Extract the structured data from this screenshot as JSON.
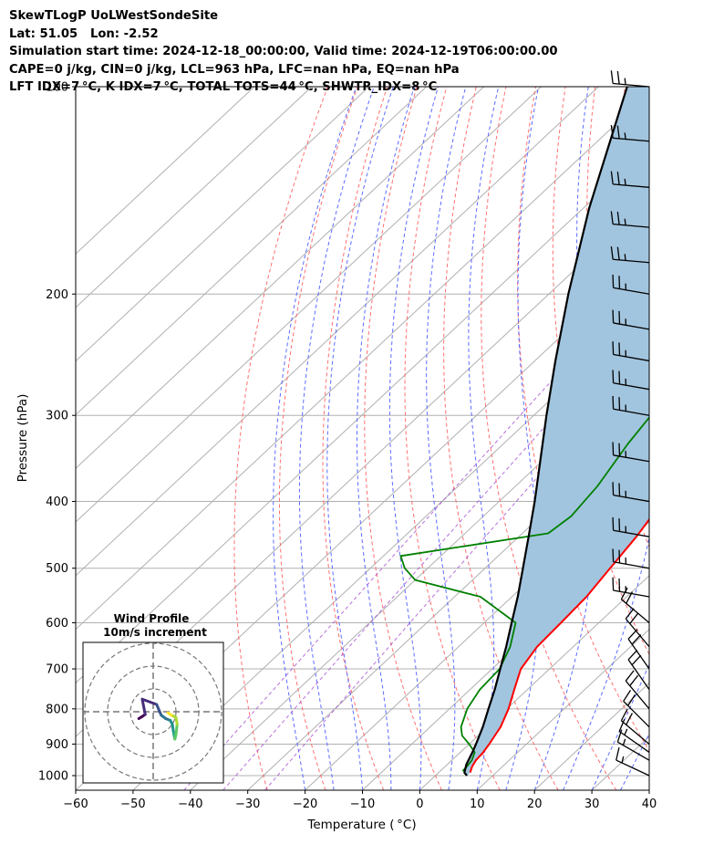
{
  "header": {
    "line1": "SkewTLogP UoLWestSondeSite",
    "line2": "Lat: 51.05   Lon: -2.52",
    "line3": "Simulation start time: 2024-12-18_00:00:00, Valid time: 2024-12-19T06:00:00.00",
    "line4": "CAPE=0 j/kg, CIN=0 j/kg, LCL=963 hPa, LFC=nan hPa, EQ=nan hPa",
    "line5": "LFT IDX=7 °C, K IDX=7 °C, TOTAL TOTS=44 °C, SHWTR_IDX=8 °C"
  },
  "chart_data": {
    "type": "line",
    "subtype": "skew-t log-p",
    "xlabel": "Temperature ( °C)",
    "ylabel": "Pressure (hPa)",
    "xlim": [
      -60,
      40
    ],
    "ylim": [
      1050,
      100
    ],
    "y_scale": "log",
    "x_ticks": [
      "−60",
      "−50",
      "−40",
      "−30",
      "−20",
      "−10",
      "0",
      "10",
      "20",
      "30",
      "40"
    ],
    "y_ticks": [
      "100",
      "200",
      "300",
      "400",
      "500",
      "600",
      "700",
      "800",
      "900",
      "1000"
    ],
    "grid": true,
    "series": [
      {
        "color": "#ff0000",
        "points": [
          [
            990,
            5.5
          ],
          [
            970,
            4.7
          ],
          [
            950,
            4.2
          ],
          [
            925,
            4.0
          ],
          [
            900,
            3.5
          ],
          [
            850,
            2.3
          ],
          [
            800,
            0.3
          ],
          [
            750,
            -2.3
          ],
          [
            700,
            -5.0
          ],
          [
            650,
            -6.3
          ],
          [
            600,
            -6.6
          ],
          [
            550,
            -7.0
          ],
          [
            500,
            -8.2
          ],
          [
            450,
            -9.5
          ],
          [
            400,
            -11.5
          ],
          [
            350,
            -14.5
          ],
          [
            320,
            -14.5
          ],
          [
            300,
            -13.5
          ],
          [
            280,
            -12.0
          ],
          [
            250,
            -9.0
          ],
          [
            225,
            -6.5
          ],
          [
            200,
            -4.5
          ],
          [
            175,
            -2.5
          ],
          [
            150,
            0.0
          ],
          [
            130,
            1.5
          ],
          [
            115,
            2.8
          ],
          [
            100,
            5.0
          ]
        ]
      },
      {
        "color": "#008000",
        "points": [
          [
            985,
            3.9
          ],
          [
            970,
            3.8
          ],
          [
            950,
            3.5
          ],
          [
            925,
            2.5
          ],
          [
            900,
            0.0
          ],
          [
            875,
            -2.8
          ],
          [
            850,
            -4.6
          ],
          [
            800,
            -6.9
          ],
          [
            750,
            -8.3
          ],
          [
            700,
            -8.7
          ],
          [
            650,
            -11.0
          ],
          [
            600,
            -14.5
          ],
          [
            550,
            -25.5
          ],
          [
            520,
            -40.0
          ],
          [
            500,
            -44.0
          ],
          [
            480,
            -47.0
          ],
          [
            445,
            -25.5
          ],
          [
            420,
            -24.7
          ],
          [
            380,
            -25.7
          ],
          [
            330,
            -28.3
          ],
          [
            280,
            -30.5
          ],
          [
            250,
            -32.5
          ],
          [
            220,
            -34.3
          ],
          [
            200,
            -36.5
          ],
          [
            170,
            -38.5
          ],
          [
            150,
            -36.5
          ],
          [
            130,
            -27.5
          ],
          [
            115,
            -17.0
          ],
          [
            100,
            -7.5
          ]
        ]
      },
      {
        "color": "#000000",
        "points": [
          [
            1000,
            5.5
          ],
          [
            990,
            4.5
          ],
          [
            963,
            3.3
          ],
          [
            925,
            2.1
          ],
          [
            900,
            1.2
          ],
          [
            850,
            -0.8
          ],
          [
            800,
            -3.2
          ],
          [
            750,
            -5.7
          ],
          [
            700,
            -8.6
          ],
          [
            650,
            -11.7
          ],
          [
            600,
            -15.2
          ],
          [
            550,
            -19.0
          ],
          [
            500,
            -23.4
          ],
          [
            450,
            -28.3
          ],
          [
            400,
            -33.8
          ],
          [
            350,
            -40.3
          ],
          [
            300,
            -47.8
          ],
          [
            250,
            -56.4
          ],
          [
            200,
            -66.6
          ],
          [
            150,
            -79.0
          ],
          [
            100,
            -95.0
          ]
        ]
      }
    ],
    "shading_color": "#a2c5df",
    "wind_barbs": [
      {
        "p": 1000,
        "speed": 15,
        "dir": 295
      },
      {
        "p": 950,
        "speed": 15,
        "dir": 300
      },
      {
        "p": 925,
        "speed": 15,
        "dir": 305
      },
      {
        "p": 900,
        "speed": 20,
        "dir": 310
      },
      {
        "p": 850,
        "speed": 20,
        "dir": 315
      },
      {
        "p": 800,
        "speed": 20,
        "dir": 320
      },
      {
        "p": 750,
        "speed": 20,
        "dir": 325
      },
      {
        "p": 700,
        "speed": 20,
        "dir": 325
      },
      {
        "p": 650,
        "speed": 20,
        "dir": 320
      },
      {
        "p": 600,
        "speed": 20,
        "dir": 310
      },
      {
        "p": 550,
        "speed": 25,
        "dir": 280
      },
      {
        "p": 500,
        "speed": 25,
        "dir": 280
      },
      {
        "p": 450,
        "speed": 25,
        "dir": 280
      },
      {
        "p": 400,
        "speed": 25,
        "dir": 280
      },
      {
        "p": 350,
        "speed": 25,
        "dir": 280
      },
      {
        "p": 300,
        "speed": 25,
        "dir": 280
      },
      {
        "p": 275,
        "speed": 25,
        "dir": 280
      },
      {
        "p": 250,
        "speed": 25,
        "dir": 280
      },
      {
        "p": 225,
        "speed": 25,
        "dir": 280
      },
      {
        "p": 200,
        "speed": 25,
        "dir": 280
      },
      {
        "p": 180,
        "speed": 25,
        "dir": 275
      },
      {
        "p": 160,
        "speed": 25,
        "dir": 275
      },
      {
        "p": 140,
        "speed": 25,
        "dir": 275
      },
      {
        "p": 120,
        "speed": 25,
        "dir": 275
      },
      {
        "p": 100,
        "speed": 25,
        "dir": 275
      }
    ],
    "hodograph": {
      "title": "Wind Profile",
      "subtitle": "10m/s increment",
      "points": [
        [
          -6.3,
          3.0
        ],
        [
          -5.0,
          2.2
        ],
        [
          -3.5,
          1.2
        ],
        [
          -4.8,
          -5.5
        ],
        [
          1.5,
          -3.2
        ],
        [
          3.5,
          1.5
        ],
        [
          5.5,
          3.0
        ],
        [
          7.5,
          3.8
        ],
        [
          8.4,
          5.5
        ],
        [
          9.0,
          9.5
        ],
        [
          9.5,
          12.0
        ],
        [
          10.0,
          10.0
        ],
        [
          10.5,
          5.5
        ],
        [
          10.0,
          2.5
        ],
        [
          8.0,
          1.5
        ],
        [
          6.5,
          0.5
        ]
      ]
    }
  }
}
